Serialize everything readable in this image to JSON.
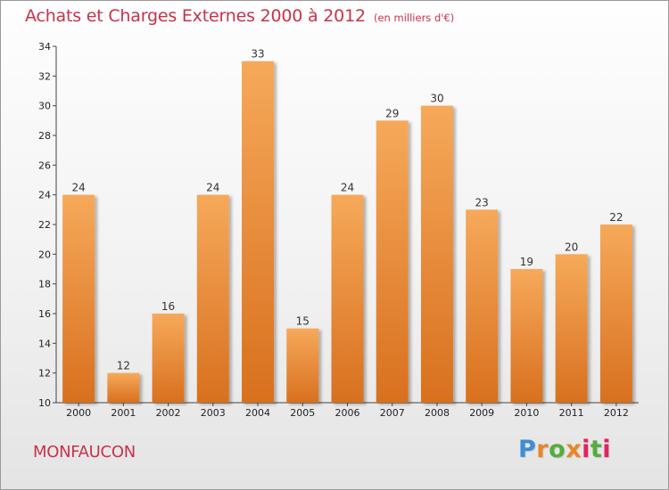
{
  "header": {
    "title": "Achats et Charges Externes 2000 à 2012",
    "unit": "(en milliers d'€)"
  },
  "footer": {
    "commune": "MONFAUCON",
    "logo": {
      "text": "Proxiti",
      "letter_colors": [
        "#3a8fd6",
        "#e8862a",
        "#54ad3c",
        "#e8862a",
        "#e0245e",
        "#54ad3c",
        "#e0245e"
      ]
    }
  },
  "colors": {
    "bar_top": "#f6a95a",
    "bar_bottom": "#d8701e",
    "title": "#c8324a",
    "axis": "#444444"
  },
  "chart_data": {
    "type": "bar",
    "categories": [
      "2000",
      "2001",
      "2002",
      "2003",
      "2004",
      "2005",
      "2006",
      "2007",
      "2008",
      "2009",
      "2010",
      "2011",
      "2012"
    ],
    "values": [
      24,
      12,
      16,
      24,
      33,
      15,
      24,
      29,
      30,
      23,
      19,
      20,
      22
    ],
    "ylim": [
      10,
      34
    ],
    "yticks": [
      "10",
      "12",
      "14",
      "16",
      "18",
      "20",
      "22",
      "24",
      "26",
      "28",
      "30",
      "32",
      "34"
    ],
    "grid": false,
    "data_labels": true
  }
}
